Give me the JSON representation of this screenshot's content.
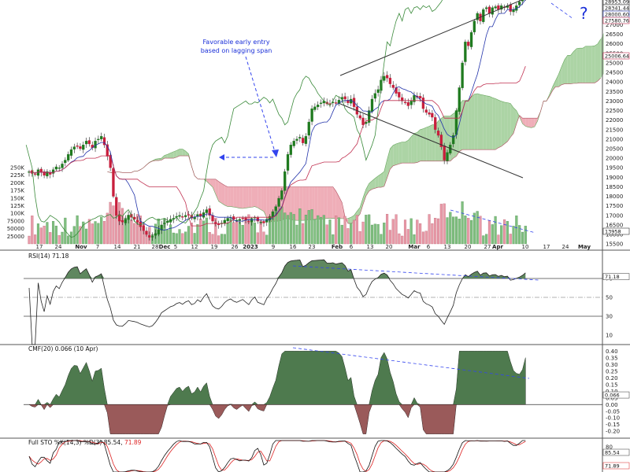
{
  "chart_data": {
    "type": "candlestick",
    "colors": {
      "up": "#1f7a1f",
      "down": "#c81e3c",
      "cloud_bull": "#a8d2a0",
      "cloud_bear": "#eeaab4",
      "tenkan": "#2233aa",
      "kijun": "#c03050",
      "lagging": "#3a8a3a",
      "annotation": "#2233ee",
      "osc_pos": "#4e7a4e",
      "osc_neg": "#9a5a5a",
      "sto_k": "#111111",
      "sto_d": "#dd2222"
    },
    "x_ticks": [
      "17",
      "24",
      "Nov",
      "7",
      "14",
      "21",
      "28",
      "Dec",
      "5",
      "12",
      "19",
      "26",
      "2023",
      "9",
      "16",
      "23",
      "Feb",
      "6",
      "13",
      "20",
      "Mar",
      "6",
      "13",
      "20",
      "27",
      "Apr",
      "10",
      "17",
      "24",
      "May"
    ],
    "price_axis": {
      "ticks": [
        "27000",
        "26500",
        "26000",
        "25500",
        "25000",
        "24500",
        "24000",
        "23500",
        "23000",
        "22500",
        "22000",
        "21500",
        "21000",
        "20500",
        "20000",
        "19500",
        "19000",
        "18500",
        "18000",
        "17500",
        "17000",
        "16500",
        "16000",
        "15500"
      ],
      "ylim": [
        15300,
        28300
      ],
      "last_values": [
        "28953.09",
        "28341.44",
        "28000.60",
        "27580.76",
        "25006.64"
      ]
    },
    "volume_axis": {
      "ticks": [
        "250K",
        "225K",
        "200K",
        "175K",
        "150K",
        "125K",
        "100K",
        "75000",
        "50000",
        "25000"
      ],
      "last_value": "13958"
    },
    "panels": [
      {
        "name": "rsi",
        "label": "RSI(14) 71.18",
        "ticks": [
          "70",
          "50",
          "30",
          "10"
        ],
        "ylim": [
          0,
          100
        ],
        "last_value": "71.18"
      },
      {
        "name": "cmf",
        "label": "CMF(20) 0.066 (10 Apr)",
        "ticks": [
          "0.40",
          "0.35",
          "0.30",
          "0.25",
          "0.20",
          "0.15",
          "0.10",
          "0.05",
          "0.00",
          "-0.05",
          "-0.10",
          "-0.15",
          "-0.20"
        ],
        "ylim": [
          -0.24,
          0.42
        ],
        "last_value": "0.066"
      },
      {
        "name": "sto",
        "label_k": "Full STO %K(14,3)",
        "label_d": "%D(3) 85.54,",
        "label_d_val": "71.89",
        "ticks": [
          "80"
        ],
        "last_k": "85.54",
        "last_d": "71.89"
      }
    ],
    "annotations": {
      "favorable_line1": "Favorable early entry",
      "favorable_line2": "based on lagging span",
      "question": "?"
    },
    "close": [
      19300,
      19200,
      19150,
      19400,
      19250,
      19100,
      19300,
      19150,
      19400,
      19550,
      19500,
      19700,
      19900,
      20200,
      20450,
      20600,
      20650,
      20500,
      20700,
      20900,
      20750,
      20550,
      20900,
      21000,
      21150,
      20700,
      20100,
      19500,
      18000,
      17000,
      16700,
      16650,
      16800,
      17000,
      16900,
      16800,
      16650,
      16400,
      16200,
      16000,
      15850,
      15900,
      16050,
      16250,
      16500,
      16600,
      16700,
      16800,
      16850,
      16950,
      17000,
      16900,
      17000,
      17050,
      16850,
      16900,
      17050,
      16950,
      17150,
      17300,
      17000,
      16700,
      16550,
      16500,
      16600,
      16750,
      16850,
      16900,
      16800,
      16750,
      16800,
      16850,
      16750,
      16650,
      16800,
      16900,
      16700,
      16650,
      16600,
      16800,
      16950,
      17200,
      17450,
      17900,
      18300,
      19300,
      20200,
      20700,
      20900,
      21000,
      21100,
      20800,
      21150,
      21900,
      22600,
      22700,
      22800,
      22900,
      23000,
      22850,
      22850,
      22950,
      22900,
      23050,
      23200,
      23100,
      22900,
      23100,
      22700,
      22300,
      22100,
      21750,
      21900,
      22500,
      23100,
      23400,
      23600,
      24100,
      24300,
      24200,
      23900,
      23700,
      23400,
      23200,
      23000,
      22900,
      22750,
      23000,
      23300,
      23200,
      23150,
      22600,
      22400,
      22300,
      22150,
      21500,
      21200,
      20600,
      19900,
      20300,
      20700,
      21200,
      22500,
      23700,
      25000,
      26100,
      25900,
      26600,
      27200,
      27600,
      27200,
      27800,
      27900,
      27600,
      27900,
      27950,
      27800,
      28000,
      27900,
      28000,
      27700,
      27800,
      28000,
      28200,
      28500,
      28953
    ]
  }
}
